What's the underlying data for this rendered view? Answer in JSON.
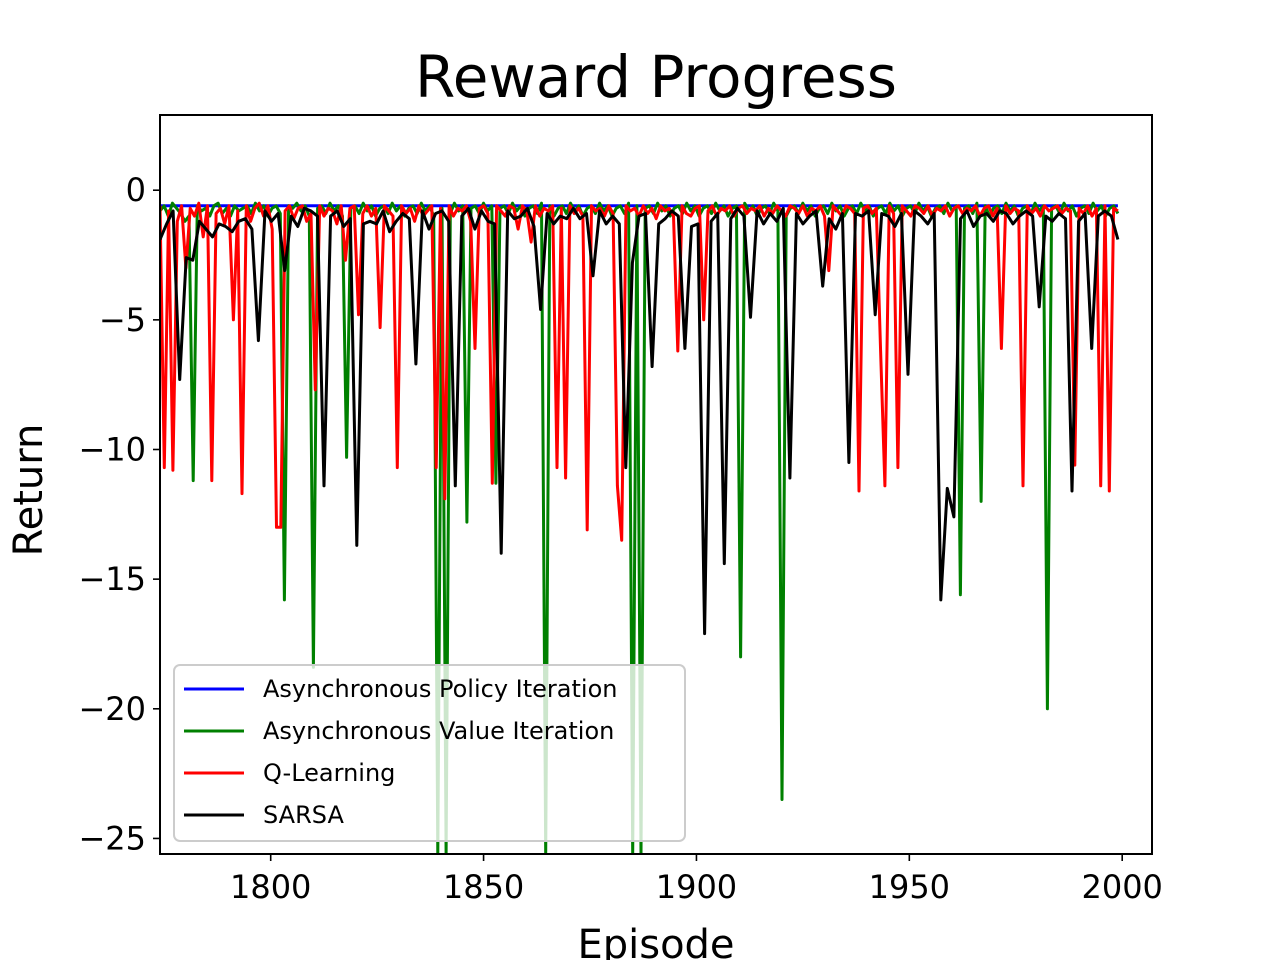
{
  "chart_data": {
    "type": "line",
    "title": "Reward Progress",
    "xlabel": "Episode",
    "ylabel": "Return",
    "xlim": [
      1774,
      2007
    ],
    "ylim": [
      -25.6,
      2.9
    ],
    "xticks": [
      1800,
      1850,
      1900,
      1950,
      2000
    ],
    "yticks": [
      0,
      -5,
      -10,
      -15,
      -20,
      -25
    ],
    "xtick_labels": [
      "1800",
      "1850",
      "1900",
      "1950",
      "2000"
    ],
    "ytick_labels": [
      "0",
      "−5",
      "−10",
      "−15",
      "−20",
      "−25"
    ],
    "grid": false,
    "legend_position": "lower-left",
    "x_start": 1774,
    "x_end": 1999,
    "series": [
      {
        "name": "Asynchronous Policy Iteration",
        "color": "#0000ff",
        "values": [
          -0.6,
          -0.6,
          -0.6,
          -0.6,
          -0.6,
          -0.6,
          -0.6,
          -0.6,
          -0.6,
          -0.6,
          -0.6,
          -0.6,
          -0.6,
          -0.6,
          -0.6,
          -0.6,
          -0.6,
          -0.6,
          -0.6,
          -0.6,
          -0.6,
          -0.6,
          -0.6,
          -0.6,
          -0.6,
          -0.6,
          -0.6,
          -0.6,
          -0.6,
          -0.6,
          -0.6,
          -0.6,
          -0.6,
          -0.6,
          -0.6,
          -0.6,
          -0.6,
          -0.6,
          -0.6,
          -0.6,
          -0.6,
          -0.6,
          -0.6,
          -0.6,
          -0.6,
          -0.6,
          -0.6,
          -0.6,
          -0.6,
          -0.6,
          -0.6,
          -0.6,
          -0.6,
          -0.6,
          -0.6,
          -0.6,
          -0.6,
          -0.6,
          -0.6,
          -0.6,
          -0.6,
          -0.6,
          -0.6,
          -0.6,
          -0.6,
          -0.6,
          -0.6,
          -0.6,
          -0.6,
          -0.6,
          -0.6,
          -0.6,
          -0.6,
          -0.6,
          -0.6,
          -0.6,
          -0.6,
          -0.6,
          -0.6,
          -0.6,
          -0.6,
          -0.6,
          -0.6,
          -0.6,
          -0.6,
          -0.6,
          -0.6,
          -0.6,
          -0.6,
          -0.6,
          -0.6,
          -0.6,
          -0.6,
          -0.6,
          -0.6,
          -0.6,
          -0.6,
          -0.6,
          -0.6,
          -0.6,
          -0.6,
          -0.6,
          -0.6,
          -0.6,
          -0.6,
          -0.6,
          -0.6,
          -0.6,
          -0.6,
          -0.6,
          -0.6,
          -0.6,
          -0.6,
          -0.6,
          -0.6,
          -0.6,
          -0.6,
          -0.6,
          -0.6,
          -0.6,
          -0.6,
          -0.6,
          -0.6,
          -0.6,
          -0.6,
          -0.6,
          -0.6,
          -0.6,
          -0.6,
          -0.6,
          -0.6,
          -0.6,
          -0.6,
          -0.6,
          -0.6,
          -0.6,
          -0.6,
          -0.6,
          -0.6,
          -0.6,
          -0.6,
          -0.6,
          -0.6,
          -0.6,
          -0.6,
          -0.6,
          -0.6,
          -0.6,
          -0.6,
          -0.6,
          -0.6,
          -0.6,
          -0.6,
          -0.6,
          -0.6,
          -0.6,
          -0.6,
          -0.6,
          -0.6,
          -0.6,
          -0.6,
          -0.6,
          -0.6,
          -0.6,
          -0.6,
          -0.6,
          -0.6,
          -0.6,
          -0.6,
          -0.6,
          -0.6,
          -0.6,
          -0.6,
          -0.6,
          -0.6,
          -0.6,
          -0.6,
          -0.6,
          -0.6,
          -0.6,
          -0.6,
          -0.6,
          -0.6,
          -0.6,
          -0.6,
          -0.6,
          -0.6,
          -0.6,
          -0.6,
          -0.6,
          -0.6,
          -0.6,
          -0.6,
          -0.6,
          -0.6,
          -0.6,
          -0.6,
          -0.6,
          -0.6,
          -0.6,
          -0.6,
          -0.6,
          -0.6,
          -0.6,
          -0.6,
          -0.6,
          -0.6,
          -0.6,
          -0.6,
          -0.6,
          -0.6,
          -0.6,
          -0.6,
          -0.6,
          -0.6,
          -0.6,
          -0.6,
          -0.6,
          -0.6,
          -0.6,
          -0.6,
          -0.6,
          -0.6,
          -0.6,
          -0.6,
          -0.6,
          -0.6,
          -0.6,
          -0.6,
          -0.6,
          -0.6
        ]
      },
      {
        "name": "Asynchronous Value Iteration",
        "color": "#008000",
        "values": [
          -0.8,
          -0.6,
          -1.0,
          -0.5,
          -0.7,
          -0.9,
          -1.2,
          -1.0,
          -11.2,
          -0.6,
          -0.8,
          -0.7,
          -1.0,
          -0.6,
          -0.5,
          -0.9,
          -0.7,
          -1.0,
          -0.6,
          -0.8,
          -0.7,
          -0.6,
          -0.9,
          -0.5,
          -0.8,
          -0.6,
          -1.0,
          -0.7,
          -0.6,
          -0.9,
          -15.8,
          -0.6,
          -0.7,
          -0.5,
          -0.8,
          -0.6,
          -1.0,
          -18.4,
          -0.7,
          -0.6,
          -0.9,
          -0.5,
          -0.8,
          -0.6,
          -1.0,
          -10.3,
          -0.7,
          -0.6,
          -0.9,
          -0.5,
          -0.8,
          -0.6,
          -1.0,
          -0.7,
          -0.6,
          -0.9,
          -0.5,
          -0.8,
          -0.6,
          -1.0,
          -0.7,
          -0.6,
          -0.9,
          -0.5,
          -0.8,
          -0.6,
          -1.0,
          -25.6,
          -0.7,
          -25.6,
          -0.9,
          -0.5,
          -0.8,
          -0.6,
          -12.8,
          -0.7,
          -0.6,
          -0.9,
          -0.5,
          -0.8,
          -0.6,
          -11.3,
          -0.7,
          -0.6,
          -0.9,
          -0.5,
          -0.8,
          -0.6,
          -1.0,
          -0.7,
          -0.6,
          -0.9,
          -0.5,
          -25.6,
          -0.6,
          -1.0,
          -0.7,
          -0.6,
          -0.9,
          -0.5,
          -0.8,
          -0.6,
          -1.0,
          -0.7,
          -0.6,
          -0.9,
          -0.5,
          -0.8,
          -0.6,
          -1.0,
          -0.7,
          -0.6,
          -0.9,
          -0.5,
          -25.6,
          -0.6,
          -25.6,
          -0.7,
          -0.6,
          -0.9,
          -0.5,
          -0.8,
          -0.6,
          -1.0,
          -0.7,
          -0.6,
          -0.9,
          -0.5,
          -0.8,
          -0.6,
          -1.0,
          -0.7,
          -0.6,
          -0.9,
          -0.5,
          -0.8,
          -0.6,
          -1.0,
          -0.7,
          -0.6,
          -18.0,
          -0.5,
          -0.8,
          -0.6,
          -1.0,
          -0.7,
          -0.6,
          -0.9,
          -0.5,
          -0.8,
          -23.5,
          -1.0,
          -0.7,
          -0.6,
          -0.9,
          -0.5,
          -0.8,
          -0.6,
          -1.0,
          -0.7,
          -0.6,
          -0.9,
          -0.5,
          -0.8,
          -0.6,
          -1.0,
          -0.7,
          -0.6,
          -0.9,
          -0.5,
          -0.8,
          -0.6,
          -1.0,
          -0.7,
          -0.6,
          -0.9,
          -0.5,
          -0.8,
          -0.6,
          -1.0,
          -0.7,
          -0.6,
          -0.9,
          -0.5,
          -0.8,
          -0.6,
          -1.0,
          -0.7,
          -0.6,
          -0.9,
          -0.5,
          -0.8,
          -0.6,
          -15.6,
          -0.7,
          -0.6,
          -0.9,
          -0.5,
          -12.0,
          -0.6,
          -1.0,
          -0.7,
          -0.6,
          -0.9,
          -0.5,
          -0.8,
          -0.6,
          -1.0,
          -0.7,
          -0.6,
          -0.9,
          -0.5,
          -0.8,
          -0.6,
          -20.0,
          -0.7,
          -0.6,
          -0.9,
          -0.5,
          -0.8,
          -0.6,
          -1.0,
          -0.7,
          -0.6,
          -0.9,
          -0.5,
          -0.8,
          -0.6,
          -1.0,
          -0.7,
          -0.6,
          -0.9
        ]
      },
      {
        "name": "Q-Learning",
        "color": "#ff0000",
        "values": [
          -0.6,
          -10.7,
          -0.8,
          -10.8,
          -1.2,
          -0.6,
          -3.0,
          -0.7,
          -1.0,
          -0.5,
          -1.8,
          -0.6,
          -11.2,
          -0.9,
          -0.7,
          -1.3,
          -0.6,
          -5.0,
          -0.8,
          -11.7,
          -0.6,
          -1.2,
          -0.7,
          -0.5,
          -1.0,
          -0.6,
          -1.5,
          -13.0,
          -13.0,
          -0.8,
          -0.6,
          -1.1,
          -0.7,
          -0.6,
          -1.2,
          -0.9,
          -7.7,
          -0.6,
          -1.0,
          -0.7,
          -0.8,
          -1.3,
          -0.6,
          -2.7,
          -0.7,
          -0.6,
          -4.8,
          -0.9,
          -0.6,
          -1.0,
          -0.7,
          -5.3,
          -0.6,
          -0.8,
          -1.0,
          -10.7,
          -0.6,
          -0.9,
          -0.7,
          -1.2,
          -0.6,
          -1.0,
          -0.8,
          -0.6,
          -10.7,
          -0.7,
          -11.9,
          -0.6,
          -1.0,
          -0.7,
          -0.8,
          -0.6,
          -1.2,
          -6.1,
          -0.7,
          -0.6,
          -0.9,
          -11.3,
          -0.6,
          -0.8,
          -1.0,
          -0.6,
          -0.7,
          -1.5,
          -0.6,
          -0.8,
          -2.0,
          -0.6,
          -1.0,
          -0.7,
          -0.8,
          -0.6,
          -10.7,
          -0.7,
          -11.1,
          -0.6,
          -0.9,
          -0.7,
          -1.0,
          -13.1,
          -0.6,
          -0.8,
          -0.7,
          -1.0,
          -0.6,
          -0.9,
          -11.4,
          -13.5,
          -0.6,
          -0.8,
          -0.7,
          -1.0,
          -0.6,
          -0.9,
          -0.7,
          -1.1,
          -0.6,
          -0.8,
          -0.7,
          -1.0,
          -6.2,
          -0.6,
          -0.9,
          -1.0,
          -0.7,
          -0.6,
          -5.0,
          -0.8,
          -0.6,
          -1.0,
          -0.7,
          -0.8,
          -0.6,
          -1.0,
          -0.7,
          -0.6,
          -0.9,
          -0.7,
          -0.8,
          -0.6,
          -1.0,
          -0.7,
          -0.9,
          -0.6,
          -0.8,
          -1.0,
          -0.6,
          -0.7,
          -0.9,
          -0.6,
          -1.0,
          -0.7,
          -0.8,
          -0.6,
          -1.0,
          -3.1,
          -0.6,
          -0.8,
          -1.0,
          -0.6,
          -0.7,
          -0.9,
          -11.6,
          -0.7,
          -0.6,
          -0.9,
          -0.7,
          -6.2,
          -11.4,
          -0.6,
          -0.9,
          -10.7,
          -0.6,
          -0.8,
          -1.0,
          -0.6,
          -0.7,
          -0.9,
          -0.6,
          -1.0,
          -0.7,
          -0.8,
          -0.6,
          -1.0,
          -0.7,
          -0.6,
          -0.9,
          -0.7,
          -0.8,
          -0.6,
          -1.0,
          -0.7,
          -0.6,
          -1.0,
          -0.7,
          -6.1,
          -0.6,
          -0.9,
          -0.7,
          -0.8,
          -11.4,
          -0.6,
          -0.9,
          -0.7,
          -1.0,
          -0.6,
          -0.8,
          -0.7,
          -0.6,
          -0.9,
          -0.7,
          -0.8,
          -10.6,
          -0.7,
          -0.9,
          -0.6,
          -1.0,
          -0.7,
          -11.4,
          -0.6,
          -11.6,
          -0.7,
          -0.8
        ]
      },
      {
        "name": "SARSA",
        "color": "#000000",
        "values": [
          -1.9,
          -1.3,
          -0.8,
          -7.3,
          -2.6,
          -2.7,
          -1.2,
          -1.5,
          -1.8,
          -1.3,
          -1.4,
          -1.6,
          -1.2,
          -1.1,
          -1.5,
          -5.8,
          -0.8,
          -1.2,
          -0.9,
          -3.1,
          -1.0,
          -1.4,
          -0.7,
          -0.8,
          -1.0,
          -11.4,
          -1.0,
          -0.8,
          -1.4,
          -1.1,
          -13.7,
          -1.3,
          -1.2,
          -1.3,
          -0.8,
          -1.6,
          -1.2,
          -0.9,
          -1.1,
          -6.7,
          -0.8,
          -1.5,
          -0.9,
          -0.8,
          -1.2,
          -11.4,
          -1.0,
          -0.7,
          -1.5,
          -0.8,
          -1.2,
          -1.3,
          -14.0,
          -0.8,
          -1.1,
          -1.0,
          -0.7,
          -1.4,
          -4.6,
          -0.9,
          -1.3,
          -1.0,
          -1.1,
          -0.7,
          -1.1,
          -0.9,
          -3.3,
          -0.8,
          -1.3,
          -1.0,
          -1.3,
          -10.7,
          -2.8,
          -1.0,
          -0.9,
          -6.8,
          -1.3,
          -1.1,
          -0.8,
          -1.0,
          -6.1,
          -1.4,
          -1.3,
          -17.1,
          -1.2,
          -0.9,
          -14.4,
          -1.1,
          -0.7,
          -1.0,
          -4.9,
          -0.8,
          -1.3,
          -0.9,
          -1.2,
          -0.7,
          -11.1,
          -0.9,
          -1.3,
          -1.0,
          -0.8,
          -3.7,
          -1.1,
          -1.5,
          -0.9,
          -10.5,
          -0.9,
          -1.0,
          -0.8,
          -4.8,
          -0.9,
          -1.0,
          -1.4,
          -0.9,
          -7.1,
          -0.8,
          -1.0,
          -1.3,
          -0.9,
          -15.8,
          -11.5,
          -12.6,
          -1.1,
          -0.8,
          -1.4,
          -1.0,
          -0.9,
          -1.2,
          -0.8,
          -0.9,
          -1.3,
          -1.0,
          -0.8,
          -1.0,
          -4.5,
          -1.0,
          -1.2,
          -0.9,
          -1.1,
          -11.6,
          -1.2,
          -0.9,
          -6.1,
          -1.0,
          -0.8,
          -1.0,
          -1.9
        ]
      }
    ]
  }
}
